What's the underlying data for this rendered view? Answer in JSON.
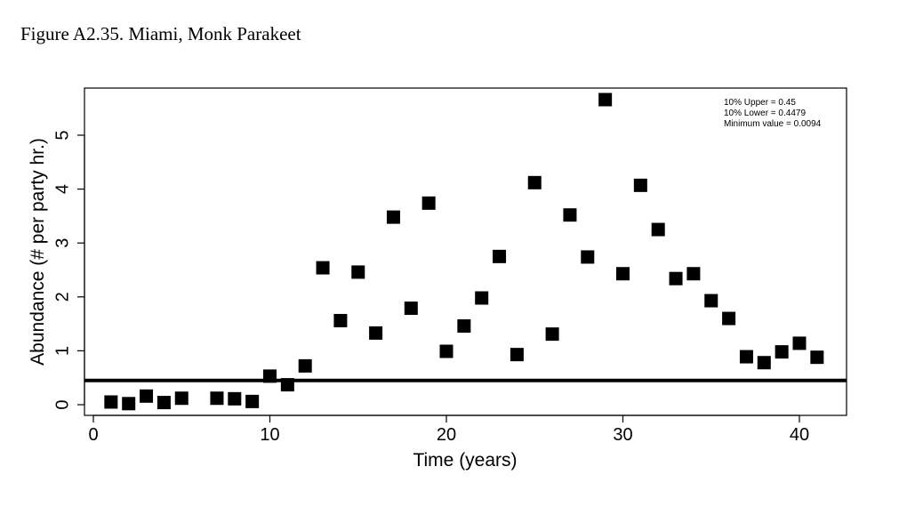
{
  "figure_title": "Figure A2.35. Miami, Monk Parakeet",
  "chart_data": {
    "type": "scatter",
    "xlabel": "Time (years)",
    "ylabel": "Abundance (# per party hr.)",
    "xlim": [
      0,
      42.5
    ],
    "ylim": [
      -0.1,
      5.9
    ],
    "xticks": [
      0,
      10,
      20,
      30,
      40
    ],
    "yticks": [
      0,
      1,
      2,
      3,
      4,
      5
    ],
    "grid": false,
    "marker": "filled-square",
    "color": "#000000",
    "threshold_line": 0.45,
    "annotations": [
      "10% Upper =  0.45",
      "10% Lower =  0.4479",
      "Minimum value =  0.0094"
    ],
    "annotation_placement": "top-right",
    "points": [
      {
        "x": 1,
        "y": 0.05
      },
      {
        "x": 2,
        "y": 0.02
      },
      {
        "x": 3,
        "y": 0.16
      },
      {
        "x": 4,
        "y": 0.04
      },
      {
        "x": 5,
        "y": 0.12
      },
      {
        "x": 7,
        "y": 0.12
      },
      {
        "x": 8,
        "y": 0.11
      },
      {
        "x": 9,
        "y": 0.06
      },
      {
        "x": 10,
        "y": 0.53
      },
      {
        "x": 11,
        "y": 0.37
      },
      {
        "x": 12,
        "y": 0.72
      },
      {
        "x": 13,
        "y": 2.54
      },
      {
        "x": 14,
        "y": 1.56
      },
      {
        "x": 15,
        "y": 2.46
      },
      {
        "x": 16,
        "y": 1.33
      },
      {
        "x": 17,
        "y": 3.48
      },
      {
        "x": 18,
        "y": 1.79
      },
      {
        "x": 19,
        "y": 3.74
      },
      {
        "x": 20,
        "y": 0.99
      },
      {
        "x": 21,
        "y": 1.46
      },
      {
        "x": 22,
        "y": 1.98
      },
      {
        "x": 23,
        "y": 2.75
      },
      {
        "x": 24,
        "y": 0.93
      },
      {
        "x": 25,
        "y": 4.12
      },
      {
        "x": 26,
        "y": 1.31
      },
      {
        "x": 27,
        "y": 3.52
      },
      {
        "x": 28,
        "y": 2.74
      },
      {
        "x": 29,
        "y": 5.66
      },
      {
        "x": 30,
        "y": 2.43
      },
      {
        "x": 31,
        "y": 4.07
      },
      {
        "x": 32,
        "y": 3.25
      },
      {
        "x": 33,
        "y": 2.34
      },
      {
        "x": 34,
        "y": 2.43
      },
      {
        "x": 35,
        "y": 1.93
      },
      {
        "x": 36,
        "y": 1.6
      },
      {
        "x": 37,
        "y": 0.89
      },
      {
        "x": 38,
        "y": 0.78
      },
      {
        "x": 39,
        "y": 0.98
      },
      {
        "x": 40,
        "y": 1.14
      },
      {
        "x": 41,
        "y": 0.88
      }
    ]
  }
}
